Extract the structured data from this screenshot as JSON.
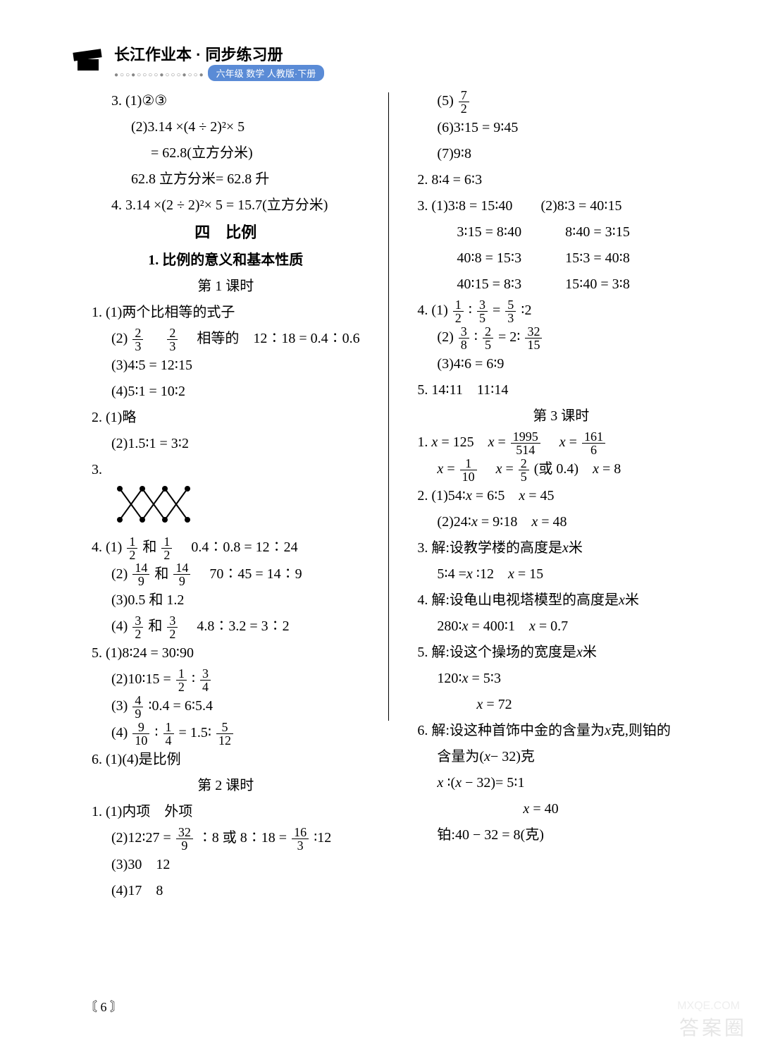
{
  "header": {
    "title": "长江作业本 · 同步练习册",
    "subtitle": "六年级 数学 人教版·下册",
    "dots": "●○○●○○○○●○○○●○○●"
  },
  "page_number": "6",
  "watermark_big": "答案圈",
  "watermark_small": "MXQE.COM",
  "colors": {
    "pill_bg": "#5a8bd6",
    "pill_fg": "#ffffff",
    "text": "#000000",
    "bg": "#ffffff",
    "dots": "#888888",
    "watermark": "#e6e6e6"
  },
  "fonts": {
    "body_size": 20,
    "title_size": 22,
    "family_body": "SimSun/Songti",
    "family_heading": "KaiTi"
  },
  "left": {
    "l1": "3. (1)②③",
    "l2": "(2)3.14 ×(4 ÷ 2)²× 5",
    "l3": "= 62.8(立方分米)",
    "l4": "62.8 立方分米= 62.8 升",
    "l5": "4. 3.14 ×(2 ÷ 2)²× 5 = 15.7(立方分米)",
    "unit": "四　比例",
    "sub": "1. 比例的意义和基本性质",
    "lesson1": "第 1 课时",
    "a1": "1. (1)两个比相等的式子",
    "a2a": "(2)",
    "a2b": "　相等的　12∶18 = 0.4∶0.6",
    "a3": "(3)4∶5 = 12∶15",
    "a4": "(4)5∶1 = 10∶2",
    "b1": "2. (1)略",
    "b2": "(2)1.5∶1 = 3∶2",
    "c1": "3.",
    "d1a": "4. (1)",
    "d1b": "和",
    "d1c": "　0.4∶0.8 = 12∶24",
    "d2a": "(2)",
    "d2b": "和",
    "d2c": "　70∶45 = 14∶9",
    "d3": "(3)0.5 和 1.2",
    "d4a": "(4)",
    "d4b": "和",
    "d4c": "　4.8∶3.2 = 3∶2",
    "e1": "5. (1)8∶24 = 30∶90",
    "e2a": "(2)10∶15 =",
    "e2b": "∶",
    "e3a": "(3)",
    "e3b": "∶0.4 = 6∶5.4",
    "e4a": "(4)",
    "e4b": "∶",
    "e4c": "= 1.5∶",
    "f1": "6. (1)(4)是比例",
    "lesson2": "第 2 课时",
    "g1": "1. (1)内项　外项",
    "g2a": "(2)12∶27 =",
    "g2b": "∶8 或 8∶18 =",
    "g2c": "∶12",
    "g3": "(3)30　12",
    "g4": "(4)17　8",
    "fr_2_3": {
      "n": "2",
      "d": "3"
    },
    "fr_1_2": {
      "n": "1",
      "d": "2"
    },
    "fr_14_9": {
      "n": "14",
      "d": "9"
    },
    "fr_3_2": {
      "n": "3",
      "d": "2"
    },
    "fr_3_4": {
      "n": "3",
      "d": "4"
    },
    "fr_4_9": {
      "n": "4",
      "d": "9"
    },
    "fr_9_10": {
      "n": "9",
      "d": "10"
    },
    "fr_1_4": {
      "n": "1",
      "d": "4"
    },
    "fr_5_12": {
      "n": "5",
      "d": "12"
    },
    "fr_32_9": {
      "n": "32",
      "d": "9"
    },
    "fr_16_3": {
      "n": "16",
      "d": "3"
    }
  },
  "right": {
    "r1a": "(5)",
    "fr_7_2": {
      "n": "7",
      "d": "2"
    },
    "r2": "(6)3∶15 = 9∶45",
    "r3": "(7)9∶8",
    "r4": "2. 8∶4 = 6∶3",
    "r5a": "3. (1)3∶8 = 15∶40",
    "r5b": "(2)8∶3 = 40∶15",
    "r6a": "3∶15 = 8∶40",
    "r6b": "8∶40 = 3∶15",
    "r7a": "40∶8 = 15∶3",
    "r7b": "15∶3 = 40∶8",
    "r8a": "40∶15 = 8∶3",
    "r8b": "15∶40 = 3∶8",
    "r9a": "4. (1)",
    "r9b": "∶",
    "r9c": "=",
    "r9d": "∶2",
    "fr_1_2": {
      "n": "1",
      "d": "2"
    },
    "fr_3_5": {
      "n": "3",
      "d": "5"
    },
    "fr_5_3": {
      "n": "5",
      "d": "3"
    },
    "r10a": "(2)",
    "r10b": "∶",
    "r10c": "= 2∶",
    "fr_3_8": {
      "n": "3",
      "d": "8"
    },
    "fr_2_5": {
      "n": "2",
      "d": "5"
    },
    "fr_32_15": {
      "n": "32",
      "d": "15"
    },
    "r11": "(3)4∶6 = 6∶9",
    "r12": "5. 14∶11　11∶14",
    "lesson3": "第 3 课时",
    "s1a": "1. ",
    "s1b": "= 125　",
    "s1c": "=",
    "s1d": "　",
    "s1e": "=",
    "fr_1995_514": {
      "n": "1995",
      "d": "514"
    },
    "fr_161_6": {
      "n": "161",
      "d": "6"
    },
    "s2a": "",
    "s2b": "=",
    "s2c": "　",
    "s2d": "=",
    "s2e": "(或 0.4)　",
    "s2f": "= 8",
    "fr_1_10": {
      "n": "1",
      "d": "10"
    },
    "fr_2_5b": {
      "n": "2",
      "d": "5"
    },
    "t1a": "2. (1)54∶",
    "t1b": "= 6∶5　",
    "t1c": "= 45",
    "t2a": "(2)24∶",
    "t2b": "= 9∶18　",
    "t2c": "= 48",
    "u1": "3. 解:设教学楼的高度是",
    "u1b": "米",
    "u2a": "5∶4 =",
    "u2b": "∶12　",
    "u2c": "= 15",
    "v1": "4. 解:设龟山电视塔模型的高度是",
    "v1b": "米",
    "v2a": "280∶",
    "v2b": "= 400∶1　",
    "v2c": "= 0.7",
    "w1": "5. 解:设这个操场的宽度是",
    "w1b": "米",
    "w2a": "120∶",
    "w2b": "= 5∶3",
    "w3a": "",
    "w3b": "= 72",
    "x1": "6. 解:设这种首饰中金的含量为",
    "x1b": "克,则铂的",
    "x2": "含量为(",
    "x2b": "− 32)克",
    "x3a": "",
    "x3b": "∶(",
    "x3c": "− 32)= 5∶1",
    "x4a": "",
    "x4b": "= 40",
    "x5": "铂:40 − 32 = 8(克)",
    "xvar": "x"
  },
  "cross_svg": {
    "stroke": "#000000",
    "stroke_width": 2,
    "dot_r": 4,
    "points": [
      [
        8,
        8
      ],
      [
        40,
        8
      ],
      [
        72,
        8
      ],
      [
        104,
        8
      ],
      [
        8,
        52
      ],
      [
        40,
        52
      ],
      [
        72,
        52
      ],
      [
        104,
        52
      ]
    ],
    "lines": [
      [
        8,
        8,
        40,
        52
      ],
      [
        40,
        8,
        8,
        52
      ],
      [
        40,
        8,
        72,
        52
      ],
      [
        72,
        8,
        40,
        52
      ],
      [
        72,
        8,
        104,
        52
      ],
      [
        104,
        8,
        72,
        52
      ]
    ]
  }
}
